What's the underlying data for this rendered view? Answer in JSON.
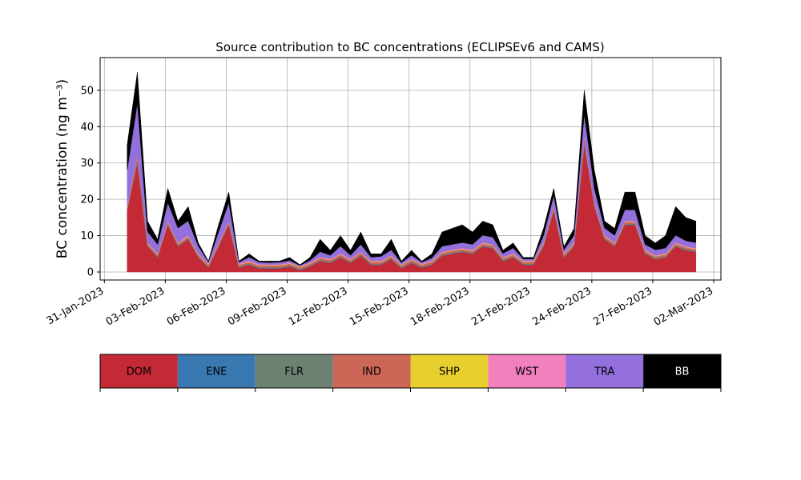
{
  "chart_data": {
    "type": "stackedarea",
    "title": "Source contribution to BC concentrations (ECLIPSEv6 and CAMS)",
    "y_label": "BC concentration (ng m⁻³)",
    "x": [
      "2023-02-01T03:00",
      "2023-02-01T15:00",
      "2023-02-02T03:00",
      "2023-02-02T15:00",
      "2023-02-03T03:00",
      "2023-02-03T15:00",
      "2023-02-04T03:00",
      "2023-02-04T15:00",
      "2023-02-05T03:00",
      "2023-02-05T15:00",
      "2023-02-06T03:00",
      "2023-02-06T15:00",
      "2023-02-07T03:00",
      "2023-02-07T15:00",
      "2023-02-08T03:00",
      "2023-02-08T15:00",
      "2023-02-09T03:00",
      "2023-02-09T15:00",
      "2023-02-10T03:00",
      "2023-02-10T15:00",
      "2023-02-11T03:00",
      "2023-02-11T15:00",
      "2023-02-12T03:00",
      "2023-02-12T15:00",
      "2023-02-13T03:00",
      "2023-02-13T15:00",
      "2023-02-14T03:00",
      "2023-02-14T15:00",
      "2023-02-15T03:00",
      "2023-02-15T15:00",
      "2023-02-16T03:00",
      "2023-02-16T15:00",
      "2023-02-17T03:00",
      "2023-02-17T15:00",
      "2023-02-18T03:00",
      "2023-02-18T15:00",
      "2023-02-19T03:00",
      "2023-02-19T15:00",
      "2023-02-20T03:00",
      "2023-02-20T15:00",
      "2023-02-21T03:00",
      "2023-02-21T15:00",
      "2023-02-22T03:00",
      "2023-02-22T15:00",
      "2023-02-23T03:00",
      "2023-02-23T15:00",
      "2023-02-24T03:00",
      "2023-02-24T15:00",
      "2023-02-25T03:00",
      "2023-02-25T15:00",
      "2023-02-26T03:00",
      "2023-02-26T15:00",
      "2023-02-27T03:00",
      "2023-02-27T15:00",
      "2023-02-28T03:00",
      "2023-02-28T15:00",
      "2023-03-01T03:00"
    ],
    "series": [
      {
        "name": "DOM",
        "color": "#c42a36",
        "values": [
          17,
          30,
          7,
          4,
          13,
          7,
          9,
          4,
          1.2,
          7,
          13,
          1.2,
          2,
          1,
          1,
          1,
          1.5,
          0.5,
          1.5,
          3,
          2.5,
          4,
          2.5,
          4.5,
          2,
          2,
          3.5,
          1,
          2.5,
          1.2,
          2,
          4.5,
          5,
          5.5,
          5,
          7,
          6.5,
          3,
          4,
          2,
          2,
          7,
          17,
          4,
          7,
          35,
          18,
          9,
          7,
          13,
          13,
          5,
          3.5,
          4,
          7,
          6,
          5.5
        ]
      },
      {
        "name": "ENE",
        "color": "#3a78b2",
        "values": [
          0.1,
          0.2,
          0.1,
          0.1,
          0.1,
          0.1,
          0.1,
          0.1,
          0.1,
          0.1,
          0.1,
          0.1,
          0.1,
          0.1,
          0.1,
          0.1,
          0.1,
          0.1,
          0.1,
          0.1,
          0.1,
          0.1,
          0.1,
          0.1,
          0.1,
          0.1,
          0.1,
          0.1,
          0.1,
          0.1,
          0.1,
          0.1,
          0.1,
          0.1,
          0.1,
          0.1,
          0.1,
          0.1,
          0.1,
          0.1,
          0.1,
          0.1,
          0.1,
          0.1,
          0.1,
          0.2,
          0.1,
          0.1,
          0.1,
          0.1,
          0.1,
          0.1,
          0.1,
          0.1,
          0.1,
          0.1,
          0.1
        ]
      },
      {
        "name": "FLR",
        "color": "#6d8272",
        "values": [
          0.2,
          0.6,
          0.2,
          0.2,
          0.2,
          0.2,
          0.2,
          0.2,
          0.2,
          0.2,
          0.2,
          0.2,
          0.2,
          0.2,
          0.2,
          0.2,
          0.2,
          0.2,
          0.2,
          0.2,
          0.2,
          0.2,
          0.2,
          0.2,
          0.2,
          0.2,
          0.2,
          0.2,
          0.2,
          0.2,
          0.2,
          0.2,
          0.2,
          0.2,
          0.2,
          0.2,
          0.2,
          0.2,
          0.2,
          0.2,
          0.2,
          0.2,
          0.2,
          0.2,
          0.2,
          0.6,
          0.2,
          0.2,
          0.2,
          0.2,
          0.2,
          0.2,
          0.2,
          0.2,
          0.2,
          0.2,
          0.2
        ]
      },
      {
        "name": "IND",
        "color": "#cc6657",
        "values": [
          0.5,
          1.5,
          0.5,
          0.5,
          0.5,
          0.5,
          0.5,
          0.5,
          0.5,
          0.5,
          0.5,
          0.5,
          0.5,
          0.5,
          0.5,
          0.5,
          0.5,
          0.5,
          0.5,
          0.5,
          0.5,
          0.5,
          0.5,
          0.5,
          0.5,
          0.5,
          0.5,
          0.5,
          0.5,
          0.5,
          0.5,
          0.5,
          0.5,
          0.5,
          0.5,
          0.5,
          0.5,
          0.5,
          0.5,
          0.5,
          0.5,
          0.5,
          0.5,
          0.5,
          0.5,
          1.5,
          0.5,
          0.5,
          0.5,
          0.5,
          0.5,
          0.5,
          0.5,
          0.5,
          0.5,
          0.5,
          0.5
        ]
      },
      {
        "name": "SHP",
        "color": "#e8cf2e",
        "values": [
          0.1,
          0.1,
          0.1,
          0.1,
          0.1,
          0.1,
          0.1,
          0.1,
          0.1,
          0.1,
          0.1,
          0.1,
          0.1,
          0.1,
          0.1,
          0.1,
          0.1,
          0.1,
          0.1,
          0.1,
          0.1,
          0.1,
          0.1,
          0.1,
          0.1,
          0.1,
          0.1,
          0.1,
          0.1,
          0.1,
          0.1,
          0.1,
          0.1,
          0.1,
          0.1,
          0.1,
          0.1,
          0.1,
          0.1,
          0.1,
          0.1,
          0.1,
          0.1,
          0.1,
          0.1,
          0.1,
          0.1,
          0.1,
          0.1,
          0.1,
          0.1,
          0.1,
          0.1,
          0.1,
          0.1,
          0.1,
          0.1
        ]
      },
      {
        "name": "WST",
        "color": "#f27fbe",
        "values": [
          0.2,
          0.1,
          0.2,
          0.2,
          0.2,
          0.2,
          0.2,
          0.2,
          0.2,
          0.2,
          0.2,
          0.2,
          0.2,
          0.2,
          0.2,
          0.2,
          0.2,
          0.2,
          0.2,
          0.2,
          0.2,
          0.2,
          0.2,
          0.2,
          0.2,
          0.2,
          0.2,
          0.2,
          0.2,
          0.2,
          0.2,
          0.2,
          0.2,
          0.2,
          0.2,
          0.2,
          0.2,
          0.2,
          0.2,
          0.2,
          0.2,
          0.2,
          0.2,
          0.2,
          0.2,
          0.1,
          0.2,
          0.2,
          0.2,
          0.2,
          0.2,
          0.2,
          0.2,
          0.2,
          0.2,
          0.2,
          0.2
        ]
      },
      {
        "name": "TRA",
        "color": "#9370db",
        "values": [
          10,
          14,
          3,
          2.5,
          5,
          4,
          4,
          2,
          0.5,
          3,
          5,
          0.4,
          1,
          0.6,
          0.5,
          0.6,
          0.6,
          0.2,
          0.6,
          1.5,
          1,
          2,
          1,
          2,
          1,
          1.2,
          1.5,
          0.5,
          1,
          0.4,
          0.8,
          1.5,
          1.5,
          1.5,
          1.5,
          2,
          2,
          1,
          1.5,
          0.5,
          0.5,
          2,
          3,
          1,
          2,
          6,
          4,
          2,
          2,
          3,
          3,
          1.5,
          1.5,
          1.5,
          2,
          1.5,
          1.5
        ]
      },
      {
        "name": "BB",
        "color": "#000000",
        "values": [
          6.9,
          8.5,
          2.9,
          1.4,
          3.9,
          1.9,
          3.9,
          0.9,
          0.2,
          1.9,
          2.9,
          0.3,
          0.9,
          0.3,
          0.4,
          0.3,
          0.8,
          0.2,
          0.8,
          3.4,
          1.4,
          2.9,
          1.4,
          3.4,
          0.9,
          0.7,
          2.9,
          0.4,
          1.4,
          0.3,
          1.1,
          3.9,
          4.4,
          4.9,
          3.4,
          3.9,
          3.4,
          0.9,
          1.4,
          0.4,
          0.4,
          1.9,
          1.9,
          0.9,
          1.9,
          6.5,
          4.9,
          1.9,
          1.9,
          4.9,
          4.9,
          2.4,
          1.9,
          3.4,
          7.9,
          6.4,
          5.9
        ]
      }
    ],
    "xlim": [
      "2023-01-30T19:00",
      "2023-03-02T08:30"
    ],
    "xticks": [
      {
        "value": "2023-01-31T00:00",
        "label": "31-Jan-2023"
      },
      {
        "value": "2023-02-03T00:00",
        "label": "03-Feb-2023"
      },
      {
        "value": "2023-02-06T00:00",
        "label": "06-Feb-2023"
      },
      {
        "value": "2023-02-09T00:00",
        "label": "09-Feb-2023"
      },
      {
        "value": "2023-02-12T00:00",
        "label": "12-Feb-2023"
      },
      {
        "value": "2023-02-15T00:00",
        "label": "15-Feb-2023"
      },
      {
        "value": "2023-02-18T00:00",
        "label": "18-Feb-2023"
      },
      {
        "value": "2023-02-21T00:00",
        "label": "21-Feb-2023"
      },
      {
        "value": "2023-02-24T00:00",
        "label": "24-Feb-2023"
      },
      {
        "value": "2023-02-27T00:00",
        "label": "27-Feb-2023"
      },
      {
        "value": "2023-03-02T00:00",
        "label": "02-Mar-2023"
      }
    ],
    "ylim": [
      -2.2,
      59
    ],
    "yticks": [
      0,
      10,
      20,
      30,
      40,
      50
    ],
    "grid": true
  }
}
